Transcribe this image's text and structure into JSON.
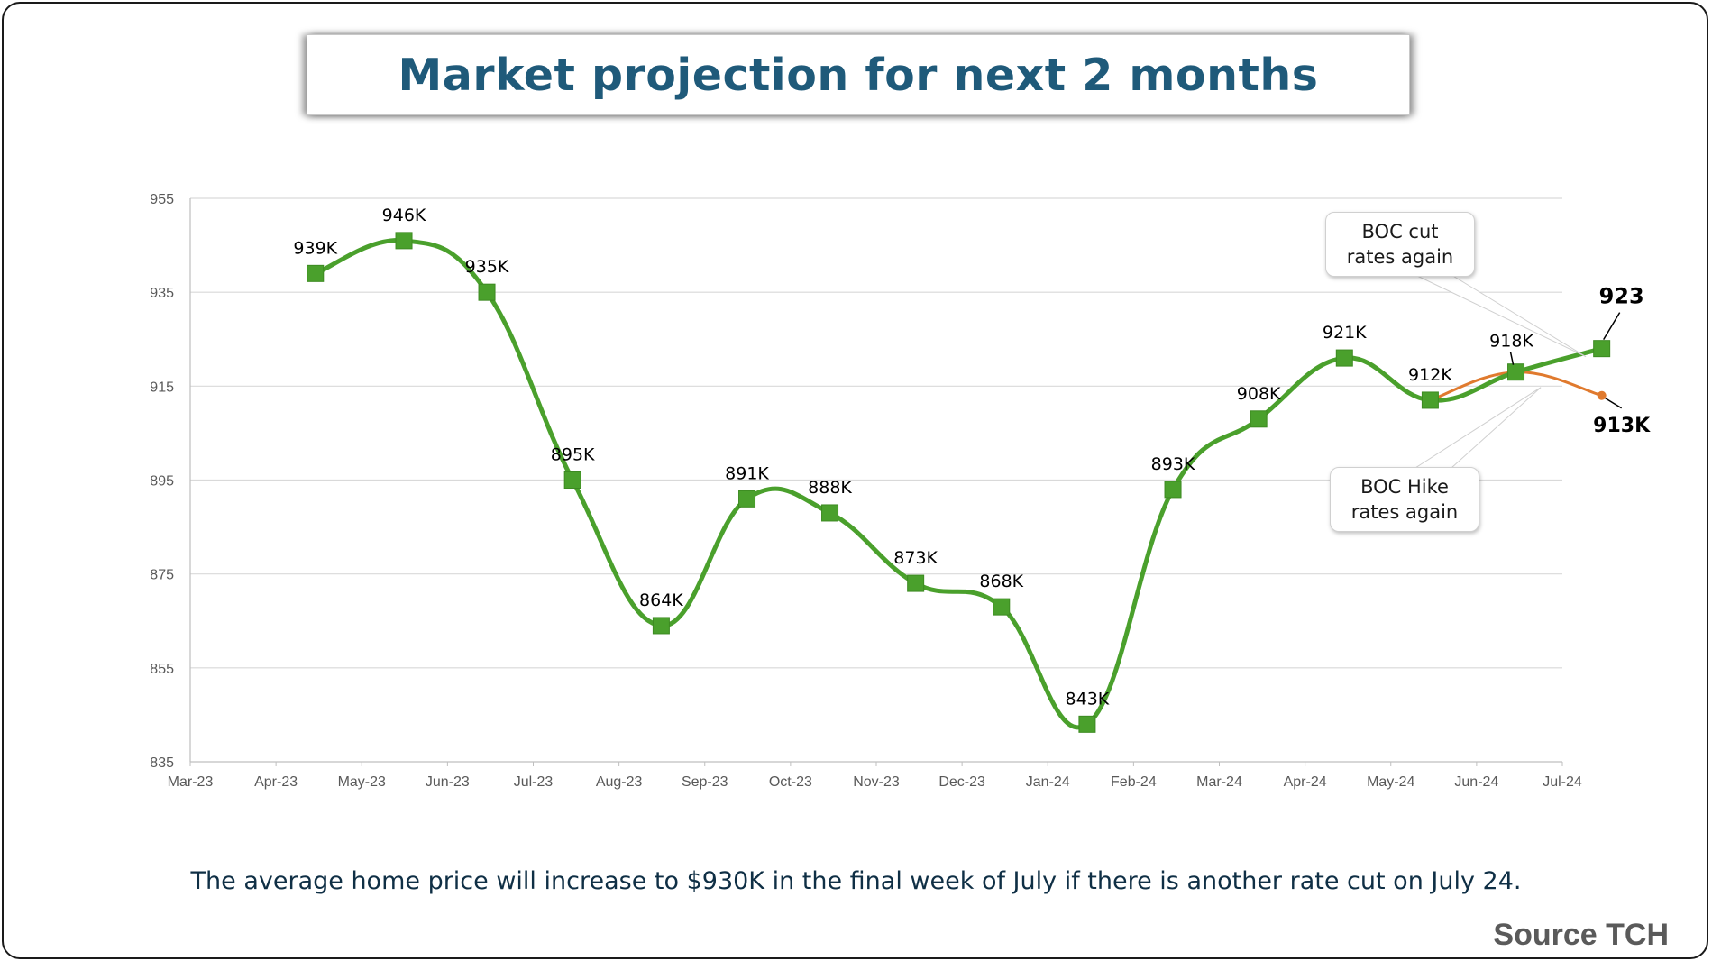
{
  "title": "Market projection for next 2 months",
  "caption": "The average home price will increase to $930K in the final week of July if there is another rate cut on July 24.",
  "source": "Source TCH",
  "callouts": {
    "cut": [
      "BOC cut",
      "rates again"
    ],
    "hike": [
      "BOC Hike",
      "rates again"
    ]
  },
  "colors": {
    "title": "#1f5a7a",
    "main_series": "#4aa02c",
    "projection_hike": "#e07a2e",
    "grid": "#d9d9d9",
    "axis_text": "#595959"
  },
  "chart_data": {
    "type": "line",
    "xlim": [
      "Mar-23",
      "Jul-24"
    ],
    "ylim": [
      835,
      955
    ],
    "yticks": [
      835,
      855,
      875,
      895,
      915,
      935,
      955
    ],
    "xticks": [
      "Mar-23",
      "Apr-23",
      "May-23",
      "Jun-23",
      "Jul-23",
      "Aug-23",
      "Sep-23",
      "Oct-23",
      "Nov-23",
      "Dec-23",
      "Jan-24",
      "Feb-24",
      "Mar-24",
      "Apr-24",
      "May-24",
      "Jun-24",
      "Jul-24"
    ],
    "grid": "horizontal",
    "series": [
      {
        "marker": "square",
        "color": "#4aa02c",
        "points": [
          {
            "x": "2023-04-15",
            "y": 939,
            "label": "939K"
          },
          {
            "x": "2023-05-16",
            "y": 946,
            "label": "946K"
          },
          {
            "x": "2023-06-15",
            "y": 935,
            "label": "935K"
          },
          {
            "x": "2023-07-15",
            "y": 895,
            "label": "895K"
          },
          {
            "x": "2023-08-16",
            "y": 864,
            "label": "864K"
          },
          {
            "x": "2023-09-16",
            "y": 891,
            "label": "891K"
          },
          {
            "x": "2023-10-15",
            "y": 888,
            "label": "888K"
          },
          {
            "x": "2023-11-15",
            "y": 873,
            "label": "873K"
          },
          {
            "x": "2023-12-15",
            "y": 868,
            "label": "868K"
          },
          {
            "x": "2024-01-15",
            "y": 843,
            "label": "843K"
          },
          {
            "x": "2024-02-15",
            "y": 893,
            "label": "893K"
          },
          {
            "x": "2024-03-15",
            "y": 908,
            "label": "908K"
          },
          {
            "x": "2024-04-15",
            "y": 921,
            "label": "921K"
          },
          {
            "x": "2024-05-15",
            "y": 912,
            "label": "912K"
          },
          {
            "x": "2024-06-15",
            "y": 918,
            "label": "918K"
          },
          {
            "x": "2024-07-15",
            "y": 923,
            "label": "923"
          }
        ]
      },
      {
        "marker": "circle",
        "color": "#e07a2e",
        "points": [
          {
            "x": "2024-05-15",
            "y": 912
          },
          {
            "x": "2024-06-15",
            "y": 918
          },
          {
            "x": "2024-07-15",
            "y": 913,
            "label": "913K"
          }
        ]
      }
    ]
  }
}
